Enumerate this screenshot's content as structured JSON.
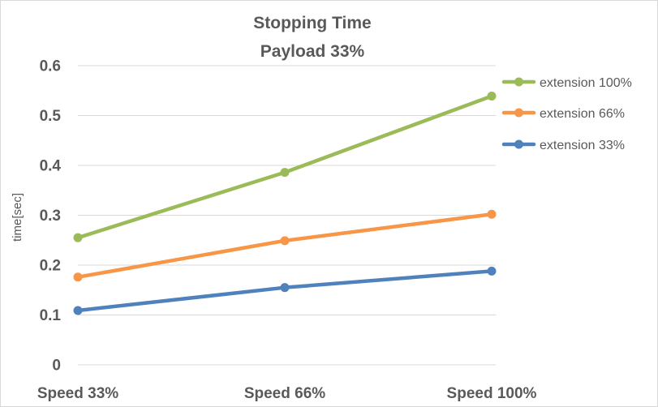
{
  "chart_data": {
    "type": "line",
    "title": "Stopping Time",
    "subtitle": "Payload 33%",
    "xlabel": "",
    "ylabel": "time[sec]",
    "categories": [
      "Speed 33%",
      "Speed 66%",
      "Speed 100%"
    ],
    "yticks": [
      "0",
      "0.1",
      "0.2",
      "0.3",
      "0.4",
      "0.5",
      "0.6"
    ],
    "ylim": [
      0,
      0.6
    ],
    "grid": true,
    "legend_position": "right",
    "series": [
      {
        "name": "extension 100%",
        "color": "#9bbb59",
        "values": [
          0.255,
          0.386,
          0.539
        ]
      },
      {
        "name": "extension 66%",
        "color": "#f79646",
        "values": [
          0.176,
          0.249,
          0.302
        ]
      },
      {
        "name": "extension 33%",
        "color": "#4f81bd",
        "values": [
          0.109,
          0.155,
          0.188
        ]
      }
    ]
  }
}
